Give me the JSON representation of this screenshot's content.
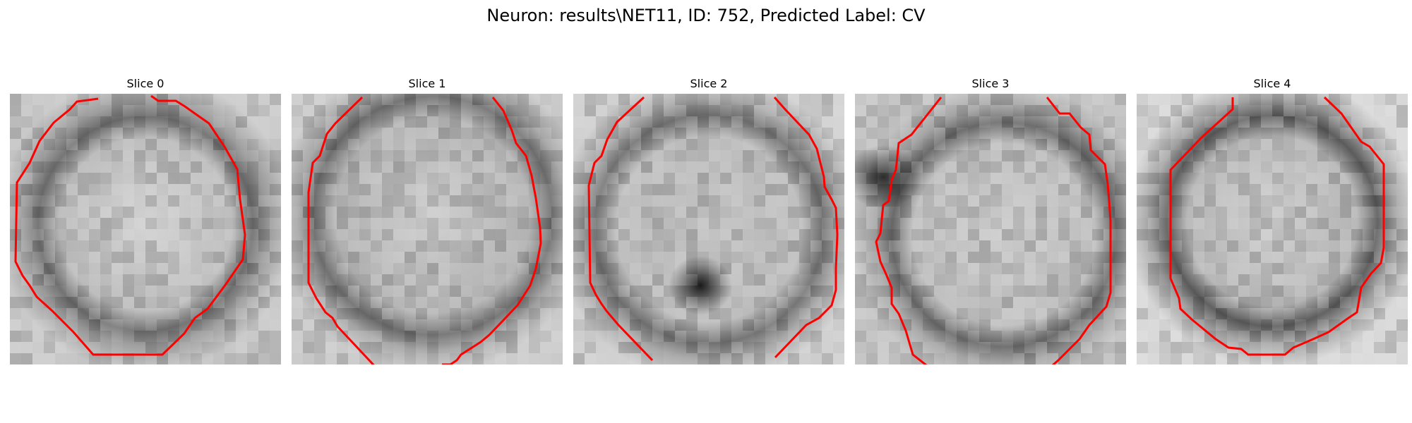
{
  "figure": {
    "title": "Neuron: results\\NET11, ID: 752, Predicted Label: CV"
  },
  "panels": [
    {
      "title": "Slice 0"
    },
    {
      "title": "Slice 1"
    },
    {
      "title": "Slice 2"
    },
    {
      "title": "Slice 3"
    },
    {
      "title": "Slice 4"
    }
  ],
  "colors": {
    "contour": "#ff0000",
    "background": "#ffffff"
  }
}
